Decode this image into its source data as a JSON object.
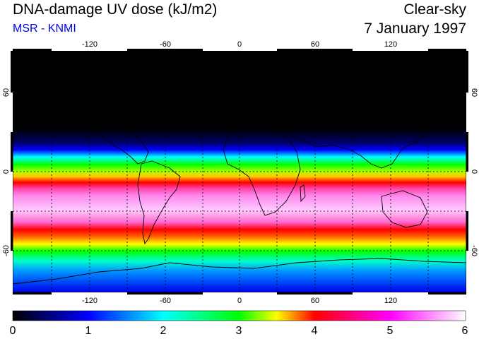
{
  "header": {
    "title": "DNA-damage UV dose (kJ/m2)",
    "subtitle": "MSR - KNMI",
    "sky_condition": "Clear-sky",
    "date": "7 January 1997"
  },
  "map": {
    "projection": "equirectangular",
    "lon_ticks": [
      "-120",
      "-60",
      "0",
      "60",
      "120"
    ],
    "lat_ticks": [
      "60",
      "0",
      "-60"
    ]
  },
  "colorbar": {
    "min": 0,
    "max": 6,
    "labels": [
      "0",
      "1",
      "2",
      "3",
      "4",
      "5",
      "6"
    ],
    "colors": [
      "#000000",
      "#0000ff",
      "#00ffff",
      "#00ff00",
      "#ffff00",
      "#ff0000",
      "#ff00ff",
      "#ffffff"
    ]
  }
}
